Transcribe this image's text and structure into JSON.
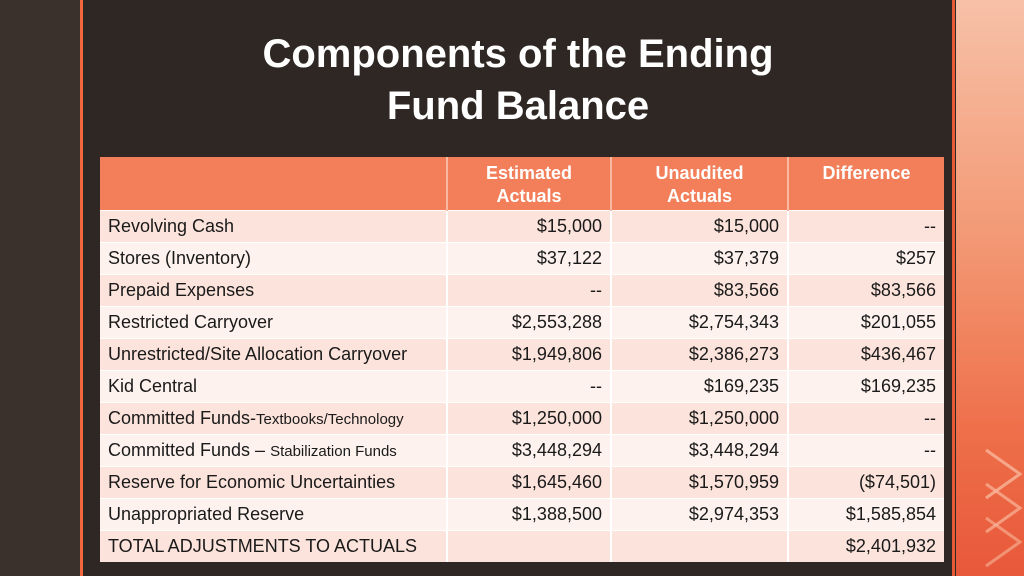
{
  "slide": {
    "title_line1": "Components of the Ending",
    "title_line2": "Fund Balance"
  },
  "table": {
    "headers": [
      "",
      "Estimated Actuals",
      "Unaudited Actuals",
      "Difference"
    ],
    "header_lines": {
      "estimated": [
        "Estimated",
        "Actuals"
      ],
      "unaudited": [
        "Unaudited",
        "Actuals"
      ],
      "difference": "Difference"
    },
    "rows": [
      {
        "label": "Revolving Cash",
        "estimated": "$15,000",
        "unaudited": "$15,000",
        "difference": "--"
      },
      {
        "label": "Stores (Inventory)",
        "estimated": "$37,122",
        "unaudited": "$37,379",
        "difference": "$257"
      },
      {
        "label": "Prepaid Expenses",
        "estimated": "--",
        "unaudited": "$83,566",
        "difference": "$83,566"
      },
      {
        "label": "Restricted Carryover",
        "estimated": "$2,553,288",
        "unaudited": "$2,754,343",
        "difference": "$201,055"
      },
      {
        "label": "Unrestricted/Site Allocation Carryover",
        "estimated": "$1,949,806",
        "unaudited": "$2,386,273",
        "difference": "$436,467"
      },
      {
        "label": "Kid Central",
        "estimated": "--",
        "unaudited": "$169,235",
        "difference": "$169,235"
      },
      {
        "label_main": "Committed Funds-",
        "label_small": "Textbooks/Technology",
        "estimated": "$1,250,000",
        "unaudited": "$1,250,000",
        "difference": "--"
      },
      {
        "label_main": "Committed Funds – ",
        "label_small": "Stabilization Funds",
        "estimated": "$3,448,294",
        "unaudited": "$3,448,294",
        "difference": "--"
      },
      {
        "label": "Reserve for Economic Uncertainties",
        "estimated": "$1,645,460",
        "unaudited": "$1,570,959",
        "difference": "($74,501)"
      },
      {
        "label": "Unappropriated Reserve",
        "estimated": "$1,388,500",
        "unaudited": "$2,974,353",
        "difference": "$1,585,854"
      },
      {
        "label": "TOTAL ADJUSTMENTS TO ACTUALS",
        "estimated": "",
        "unaudited": "",
        "difference": "$2,401,932"
      }
    ]
  },
  "colors": {
    "background": "#2e2724",
    "accent": "#f0683c",
    "header_fill": "#f27f5a",
    "row_odd": "#fce3db",
    "row_even": "#fdf2ee"
  }
}
